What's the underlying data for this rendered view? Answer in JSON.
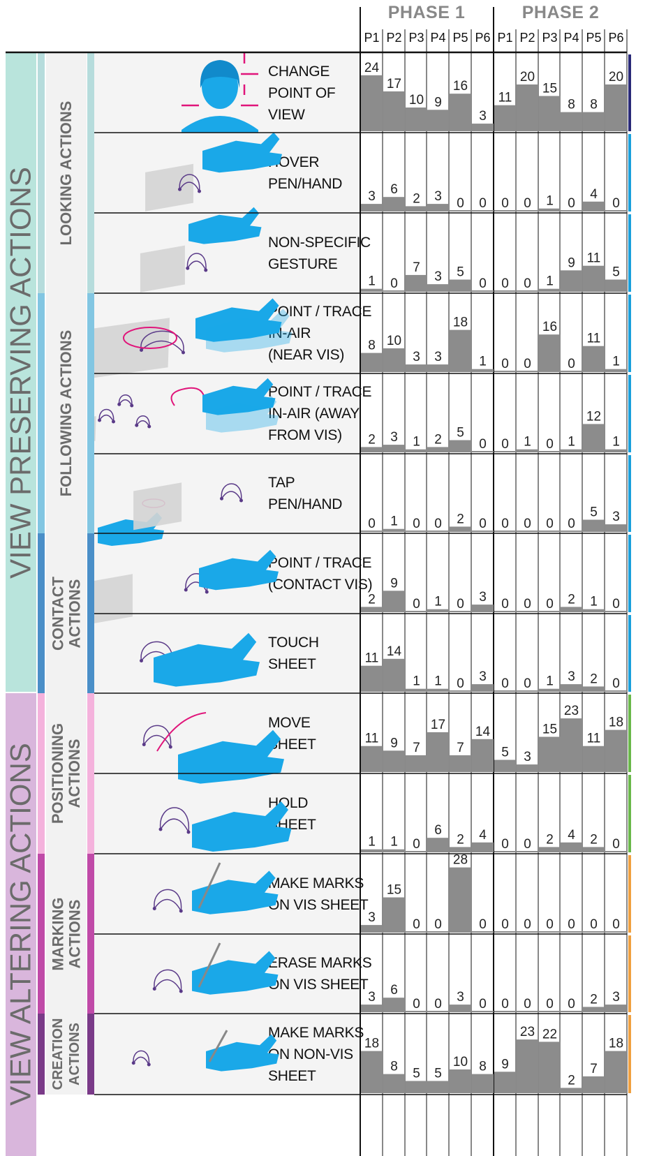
{
  "phases": [
    {
      "title": "PHASE 1",
      "participants": [
        "P1",
        "P2",
        "P3",
        "P4",
        "P5",
        "P6"
      ]
    },
    {
      "title": "PHASE 2",
      "participants": [
        "P1",
        "P2",
        "P3",
        "P4",
        "P5",
        "P6"
      ]
    }
  ],
  "categories": [
    {
      "label": "VIEW PRESERVING ACTIONS",
      "color": "#b9e4dc"
    },
    {
      "label": "VIEW ALTERING ACTIONS",
      "color": "#d9b6dc"
    }
  ],
  "groups": [
    {
      "label": "LOOKING ACTIONS",
      "color": "#b6dcdc"
    },
    {
      "label": "FOLLOWING ACTIONS",
      "color": "#82c6e2"
    },
    {
      "label": "CONTACT ACTIONS",
      "color": "#4a8fc8"
    },
    {
      "label": "POSITIONING ACTIONS",
      "color": "#f4b2dc"
    },
    {
      "label": "MARKING ACTIONS",
      "color": "#c04aa8"
    },
    {
      "label": "CREATION ACTIONS",
      "color": "#7a3a88"
    }
  ],
  "chart_data": {
    "type": "bar",
    "title": "",
    "rows": [
      {
        "label": "CHANGE\nPOINT OF\nVIEW",
        "group": "LOOKING ACTIONS",
        "phase1": [
          24,
          17,
          10,
          9,
          16,
          3
        ],
        "phase2": [
          11,
          20,
          15,
          8,
          8,
          20
        ]
      },
      {
        "label": "HOVER\nPEN/HAND",
        "group": "LOOKING ACTIONS",
        "phase1": [
          3,
          6,
          2,
          3,
          0,
          0
        ],
        "phase2": [
          0,
          0,
          1,
          0,
          4,
          0
        ]
      },
      {
        "label": "NON-SPECIFIC\nGESTURE",
        "group": "LOOKING ACTIONS",
        "phase1": [
          1,
          0,
          7,
          3,
          5,
          0
        ],
        "phase2": [
          0,
          0,
          1,
          9,
          11,
          5
        ]
      },
      {
        "label": "POINT / TRACE\nIN-AIR\n(NEAR VIS)",
        "group": "FOLLOWING ACTIONS",
        "phase1": [
          8,
          10,
          3,
          3,
          18,
          1
        ],
        "phase2": [
          0,
          0,
          16,
          0,
          11,
          1
        ]
      },
      {
        "label": "POINT / TRACE\nIN-AIR (AWAY\nFROM VIS)",
        "group": "FOLLOWING ACTIONS",
        "phase1": [
          2,
          3,
          1,
          2,
          5,
          0
        ],
        "phase2": [
          0,
          1,
          0,
          1,
          12,
          1
        ]
      },
      {
        "label": "TAP\nPEN/HAND",
        "group": "FOLLOWING ACTIONS",
        "phase1": [
          0,
          1,
          0,
          0,
          2,
          0
        ],
        "phase2": [
          0,
          0,
          0,
          0,
          5,
          3
        ]
      },
      {
        "label": "POINT / TRACE\n(CONTACT VIS)",
        "group": "CONTACT ACTIONS",
        "phase1": [
          2,
          9,
          0,
          1,
          0,
          3
        ],
        "phase2": [
          0,
          0,
          0,
          2,
          1,
          0
        ]
      },
      {
        "label": "TOUCH\nSHEET",
        "group": "CONTACT ACTIONS",
        "phase1": [
          11,
          14,
          1,
          1,
          0,
          3
        ],
        "phase2": [
          0,
          0,
          1,
          3,
          2,
          0
        ]
      },
      {
        "label": "MOVE\nSHEET",
        "group": "POSITIONING ACTIONS",
        "phase1": [
          11,
          9,
          7,
          17,
          7,
          14
        ],
        "phase2": [
          5,
          3,
          15,
          23,
          11,
          18
        ]
      },
      {
        "label": "HOLD\nSHEET",
        "group": "POSITIONING ACTIONS",
        "phase1": [
          1,
          1,
          0,
          6,
          2,
          4
        ],
        "phase2": [
          0,
          0,
          2,
          4,
          2,
          0
        ]
      },
      {
        "label": "MAKE MARKS\nON VIS SHEET",
        "group": "MARKING ACTIONS",
        "phase1": [
          3,
          15,
          0,
          0,
          28,
          0
        ],
        "phase2": [
          0,
          0,
          0,
          0,
          0,
          0
        ]
      },
      {
        "label": "ERASE MARKS\nON VIS SHEET",
        "group": "MARKING ACTIONS",
        "phase1": [
          3,
          6,
          0,
          0,
          3,
          0
        ],
        "phase2": [
          0,
          0,
          0,
          0,
          2,
          3
        ]
      },
      {
        "label": "MAKE MARKS\nON NON-VIS\nSHEET",
        "group": "CREATION ACTIONS",
        "phase1": [
          18,
          8,
          5,
          5,
          10,
          8
        ],
        "phase2": [
          9,
          23,
          22,
          2,
          7,
          18
        ]
      }
    ],
    "right_edge_colors": [
      "#2a2a78",
      "#1aa0dc",
      "#1aa0dc",
      "#1aa0dc",
      "#1aa0dc",
      "#1aa0dc",
      "#1aa0dc",
      "#1aa0dc",
      "#6ab84a",
      "#6ab84a",
      "#f0a040",
      "#f0a040",
      "#f0a040"
    ],
    "grid": true,
    "legend": "none"
  }
}
